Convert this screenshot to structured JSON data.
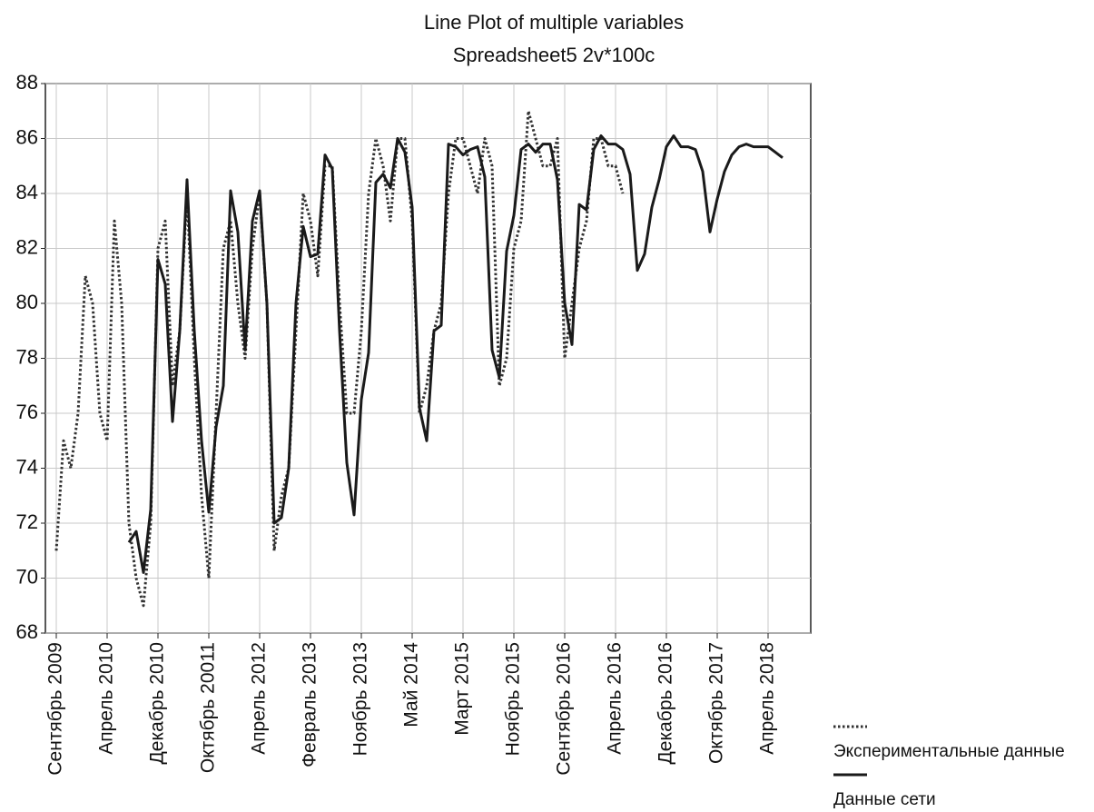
{
  "chart_data": {
    "type": "line",
    "title": "Line Plot of multiple variables",
    "subtitle": "Spreadsheet5 2v*100c",
    "categories": [
      "Сентябрь 2009",
      null,
      null,
      null,
      null,
      null,
      null,
      "Апрель 2010",
      null,
      null,
      null,
      null,
      null,
      null,
      "Декабрь 2010",
      null,
      null,
      null,
      null,
      null,
      null,
      "Октябрь 20011",
      null,
      null,
      null,
      null,
      null,
      null,
      "Апрель 2012",
      null,
      null,
      null,
      null,
      null,
      null,
      "Февраль 2013",
      null,
      null,
      null,
      null,
      null,
      null,
      "Ноябрь 2013",
      null,
      null,
      null,
      null,
      null,
      null,
      "Май 2014",
      null,
      null,
      null,
      null,
      null,
      null,
      "Март 2015",
      null,
      null,
      null,
      null,
      null,
      null,
      "Ноябрь 2015",
      null,
      null,
      null,
      null,
      null,
      null,
      "Сентябрь 2016",
      null,
      null,
      null,
      null,
      null,
      null,
      "Апрель 2016",
      null,
      null,
      null,
      null,
      null,
      null,
      "Декабрь 2016",
      null,
      null,
      null,
      null,
      null,
      null,
      "Октябрь 2017",
      null,
      null,
      null,
      null,
      null,
      null,
      "Апрель 2018",
      null,
      null
    ],
    "series": [
      {
        "name": "Экспериментальные данные",
        "color": "#333333",
        "dash": "dotted",
        "values": [
          71,
          75,
          74,
          76,
          81,
          80,
          76,
          75,
          83,
          80,
          72,
          70,
          69,
          72,
          82,
          83,
          77,
          79,
          84,
          78,
          73,
          70,
          76,
          82,
          83,
          80,
          78,
          82,
          84,
          80,
          71,
          73,
          74,
          79,
          84,
          83,
          81,
          85,
          85,
          80,
          76,
          76,
          79,
          84,
          86,
          85,
          83,
          86,
          86,
          83,
          76,
          77,
          79,
          80,
          84,
          86,
          86,
          85,
          84,
          86,
          85,
          77,
          78,
          82,
          83,
          87,
          86,
          85,
          85,
          86,
          78,
          80,
          82,
          83,
          86,
          86,
          85,
          85,
          84,
          null,
          null,
          null,
          null,
          null,
          null,
          null,
          null,
          null,
          null,
          null,
          null,
          null,
          null,
          null,
          null,
          null,
          null,
          null,
          null,
          null,
          null
        ]
      },
      {
        "name": "Данные сети",
        "color": "#1a1a1a",
        "dash": "solid",
        "values": [
          null,
          null,
          null,
          null,
          null,
          null,
          null,
          null,
          null,
          null,
          71.3,
          71.7,
          70.2,
          72.5,
          81.6,
          80.7,
          75.7,
          79,
          84.5,
          79,
          75,
          72.4,
          75.5,
          77,
          84.1,
          82.6,
          78.3,
          83,
          84.1,
          80,
          72,
          72.2,
          74,
          80,
          82.8,
          81.7,
          81.8,
          85.4,
          84.9,
          79,
          74.2,
          72.3,
          76.5,
          78.2,
          84.4,
          84.7,
          84.2,
          86,
          85.5,
          83.5,
          76.2,
          75,
          79,
          79.2,
          85.8,
          85.7,
          85.4,
          85.6,
          85.7,
          84.6,
          78.3,
          77.3,
          81.9,
          83.2,
          85.6,
          85.8,
          85.5,
          85.8,
          85.8,
          84.5,
          80,
          78.5,
          83.6,
          83.4,
          85.6,
          86.1,
          85.8,
          85.8,
          85.6,
          84.7,
          81.2,
          81.8,
          83.5,
          84.5,
          85.7,
          86.1,
          85.7,
          85.7,
          85.6,
          84.8,
          82.6,
          83.8,
          84.8,
          85.4,
          85.7,
          85.8,
          85.7,
          85.7,
          85.7,
          85.5,
          85.3
        ]
      }
    ],
    "ylim": [
      68,
      88
    ],
    "yticks": [
      68,
      70,
      72,
      74,
      76,
      78,
      80,
      82,
      84,
      86,
      88
    ],
    "grid": true,
    "legend": "bottom-right"
  }
}
